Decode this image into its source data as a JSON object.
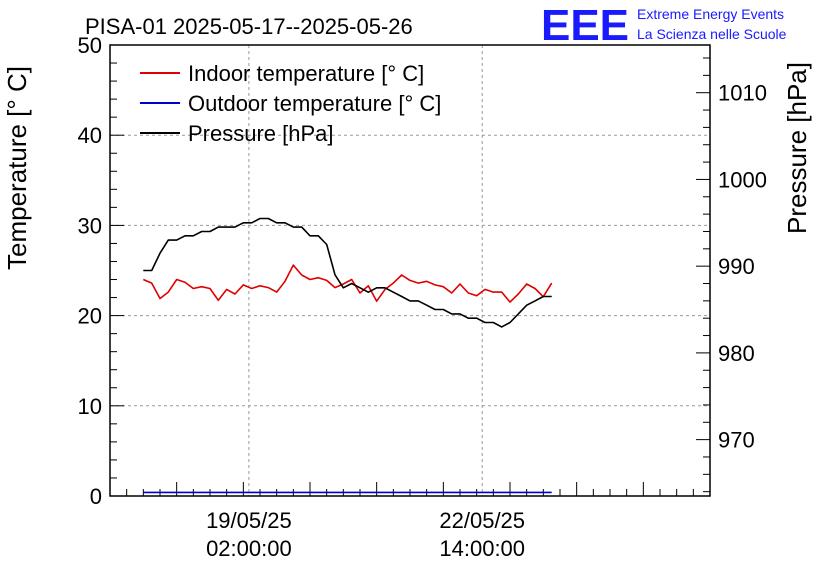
{
  "title": "PISA-01 2025-05-17--2025-05-26",
  "logo": {
    "mark": "EEE",
    "line1": "Extreme Energy Events",
    "line2": "La Scienza nelle Scuole",
    "color": "#1a1aff"
  },
  "chart_data": {
    "type": "line",
    "ylabel_left": "Temperature [° C]",
    "ylabel_right": "Pressure [hPa]",
    "ylim_left": [
      0,
      50
    ],
    "ylim_right": [
      963.5,
      1015.5
    ],
    "left_ticks": [
      "0",
      "10",
      "20",
      "30",
      "40",
      "50"
    ],
    "right_ticks": [
      "970",
      "980",
      "990",
      "1000",
      "1010"
    ],
    "x_ticks": [
      {
        "date": "19/05/25",
        "time": "02:00:00"
      },
      {
        "date": "22/05/25",
        "time": "14:00:00"
      }
    ],
    "xlim": [
      "2025-05-17 00:00",
      "2025-05-26 00:00"
    ],
    "grid": true,
    "legend_position": "top-left",
    "x": [
      "2025-05-17 12:00",
      "2025-05-17 15:00",
      "2025-05-17 18:00",
      "2025-05-17 21:00",
      "2025-05-18 00:00",
      "2025-05-18 03:00",
      "2025-05-18 06:00",
      "2025-05-18 09:00",
      "2025-05-18 12:00",
      "2025-05-18 15:00",
      "2025-05-18 18:00",
      "2025-05-18 21:00",
      "2025-05-19 00:00",
      "2025-05-19 03:00",
      "2025-05-19 06:00",
      "2025-05-19 09:00",
      "2025-05-19 12:00",
      "2025-05-19 15:00",
      "2025-05-19 18:00",
      "2025-05-19 21:00",
      "2025-05-20 00:00",
      "2025-05-20 03:00",
      "2025-05-20 06:00",
      "2025-05-20 09:00",
      "2025-05-20 12:00",
      "2025-05-20 15:00",
      "2025-05-20 18:00",
      "2025-05-20 21:00",
      "2025-05-21 00:00",
      "2025-05-21 03:00",
      "2025-05-21 06:00",
      "2025-05-21 09:00",
      "2025-05-21 12:00",
      "2025-05-21 15:00",
      "2025-05-21 18:00",
      "2025-05-21 21:00",
      "2025-05-22 00:00",
      "2025-05-22 03:00",
      "2025-05-22 06:00",
      "2025-05-22 09:00",
      "2025-05-22 12:00",
      "2025-05-22 15:00",
      "2025-05-22 18:00",
      "2025-05-22 21:00",
      "2025-05-23 00:00",
      "2025-05-23 03:00",
      "2025-05-23 06:00",
      "2025-05-23 09:00",
      "2025-05-23 12:00",
      "2025-05-23 15:00"
    ],
    "series": [
      {
        "name": "Indoor temperature [° C]",
        "color": "#e00000",
        "axis": "left",
        "values": [
          24.0,
          23.6,
          21.9,
          22.6,
          24.0,
          23.7,
          23.0,
          23.2,
          23.0,
          21.7,
          22.9,
          22.4,
          23.4,
          23.0,
          23.3,
          23.1,
          22.6,
          23.8,
          25.6,
          24.5,
          24.0,
          24.2,
          23.9,
          23.1,
          23.5,
          24.0,
          22.5,
          23.3,
          21.6,
          22.9,
          23.6,
          24.5,
          23.9,
          23.6,
          23.8,
          23.4,
          23.2,
          22.5,
          23.5,
          22.5,
          22.2,
          22.9,
          22.6,
          22.6,
          21.5,
          22.4,
          23.5,
          23.0,
          22.1,
          23.6
        ]
      },
      {
        "name": "Outdoor temperature [° C]",
        "color": "#0000c8",
        "axis": "left",
        "values": [
          0.4,
          0.4,
          0.4,
          0.4,
          0.4,
          0.4,
          0.4,
          0.4,
          0.4,
          0.4,
          0.4,
          0.4,
          0.4,
          0.4,
          0.4,
          0.4,
          0.4,
          0.4,
          0.4,
          0.4,
          0.4,
          0.4,
          0.4,
          0.4,
          0.4,
          0.4,
          0.4,
          0.4,
          0.4,
          0.4,
          0.4,
          0.4,
          0.4,
          0.4,
          0.4,
          0.4,
          0.4,
          0.4,
          0.4,
          0.4,
          0.4,
          0.4,
          0.4,
          0.4,
          0.4,
          0.4,
          0.4,
          0.4,
          0.4,
          0.4
        ]
      },
      {
        "name": "Pressure [hPa]",
        "color": "#000000",
        "axis": "right",
        "values": [
          989.5,
          989.5,
          991.5,
          993.0,
          993.0,
          993.5,
          993.5,
          994.0,
          994.0,
          994.5,
          994.5,
          994.5,
          995.0,
          995.0,
          995.5,
          995.5,
          995.0,
          995.0,
          994.5,
          994.5,
          993.5,
          993.5,
          992.5,
          989.0,
          987.5,
          988.0,
          987.5,
          987.0,
          987.5,
          987.5,
          987.0,
          986.5,
          986.0,
          986.0,
          985.5,
          985.0,
          985.0,
          984.5,
          984.5,
          984.0,
          984.0,
          983.5,
          983.5,
          983.0,
          983.5,
          984.5,
          985.5,
          986.0,
          986.5,
          986.5
        ]
      }
    ]
  }
}
